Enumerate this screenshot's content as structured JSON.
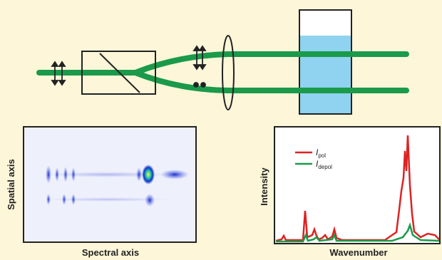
{
  "image_panel": {
    "y_label": "Spatial axis",
    "x_label": "Spectral axis"
  },
  "spectrum_panel": {
    "y_label": "Intensity",
    "x_label": "Wavenumber",
    "legend": [
      {
        "symbol": "I",
        "subscript": "pol"
      },
      {
        "symbol": "I",
        "subscript": "depol"
      }
    ]
  }
}
